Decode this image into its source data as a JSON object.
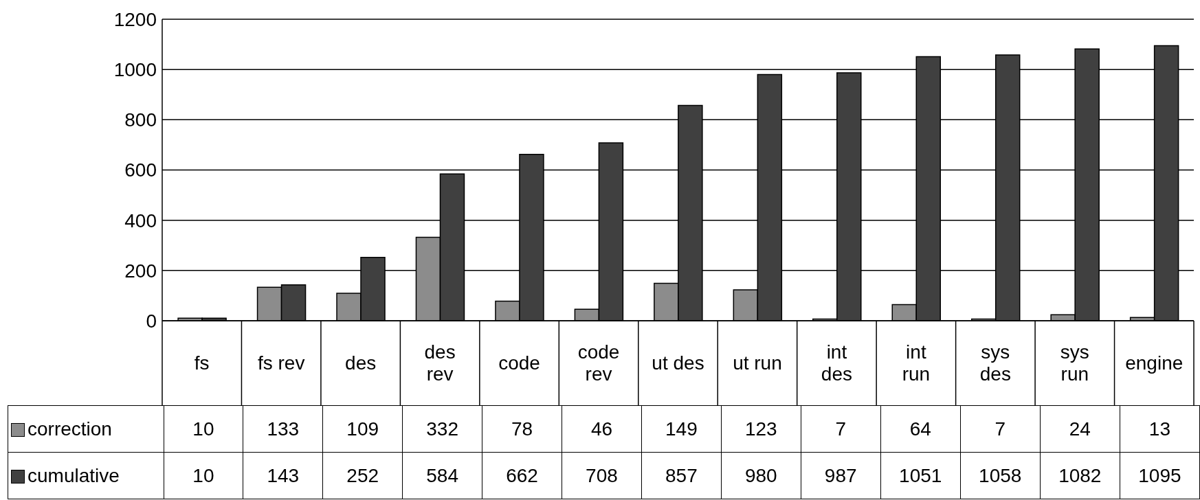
{
  "chart_data": {
    "type": "bar",
    "categories": [
      "fs",
      "fs rev",
      "des",
      "des rev",
      "code",
      "code rev",
      "ut des",
      "ut run",
      "int des",
      "int run",
      "sys des",
      "sys run",
      "engine"
    ],
    "series": [
      {
        "name": "correction",
        "color": "#8c8c8c",
        "values": [
          10,
          133,
          109,
          332,
          78,
          46,
          149,
          123,
          7,
          64,
          7,
          24,
          13
        ]
      },
      {
        "name": "cumulative",
        "color": "#404040",
        "values": [
          10,
          143,
          252,
          584,
          662,
          708,
          857,
          980,
          987,
          1051,
          1058,
          1082,
          1095
        ]
      }
    ],
    "ylim": [
      0,
      1200
    ],
    "yticks": [
      0,
      200,
      400,
      600,
      800,
      1000,
      1200
    ],
    "grid": "y",
    "legend": "bottom left",
    "data_labels": true
  }
}
